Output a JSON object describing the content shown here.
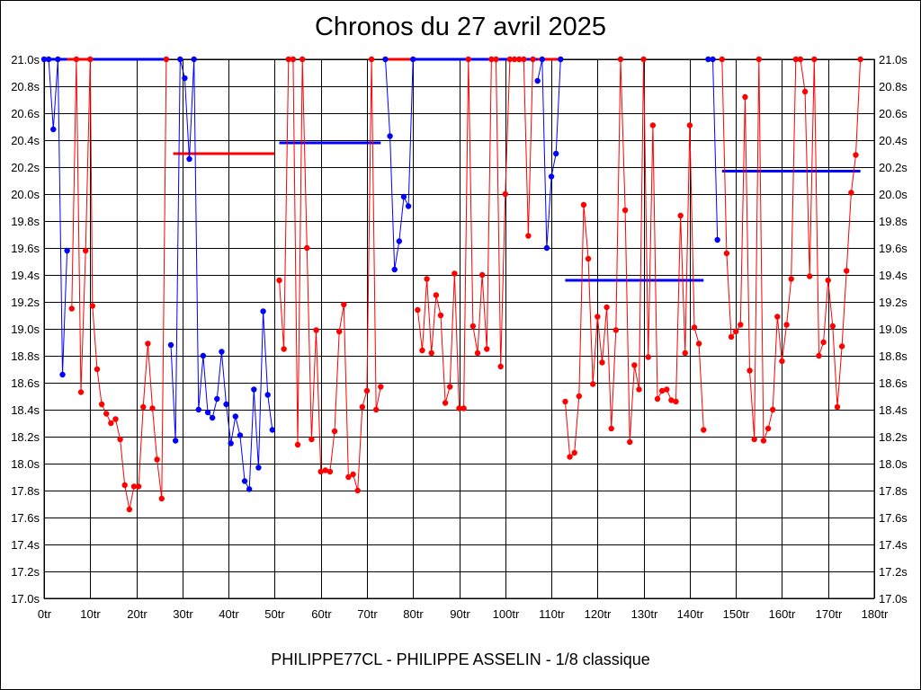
{
  "chart_data": {
    "type": "line",
    "title": "Chronos du 27 avril 2025",
    "footer": "PHILIPPE77CL - PHILIPPE ASSELIN - 1/8 classique",
    "colors": {
      "series_a": "#0000ff",
      "series_b": "#ff0000",
      "grid": "#000000"
    },
    "xlim": [
      0,
      180
    ],
    "ylim": [
      17.0,
      21.0
    ],
    "x_ticks": [
      {
        "v": 0,
        "label": "0tr"
      },
      {
        "v": 10,
        "label": "10tr"
      },
      {
        "v": 20,
        "label": "20tr"
      },
      {
        "v": 30,
        "label": "30tr"
      },
      {
        "v": 40,
        "label": "40tr"
      },
      {
        "v": 50,
        "label": "50tr"
      },
      {
        "v": 60,
        "label": "60tr"
      },
      {
        "v": 70,
        "label": "70tr"
      },
      {
        "v": 80,
        "label": "80tr"
      },
      {
        "v": 90,
        "label": "90tr"
      },
      {
        "v": 100,
        "label": "100tr"
      },
      {
        "v": 110,
        "label": "110tr"
      },
      {
        "v": 120,
        "label": "120tr"
      },
      {
        "v": 130,
        "label": "130tr"
      },
      {
        "v": 140,
        "label": "140tr"
      },
      {
        "v": 150,
        "label": "150tr"
      },
      {
        "v": 160,
        "label": "160tr"
      },
      {
        "v": 170,
        "label": "170tr"
      },
      {
        "v": 180,
        "label": "180tr"
      }
    ],
    "y_ticks": [
      {
        "v": 17.0,
        "label": "17.0s"
      },
      {
        "v": 17.2,
        "label": "17.2s"
      },
      {
        "v": 17.4,
        "label": "17.4s"
      },
      {
        "v": 17.6,
        "label": "17.6s"
      },
      {
        "v": 17.8,
        "label": "17.8s"
      },
      {
        "v": 18.0,
        "label": "18.0s"
      },
      {
        "v": 18.2,
        "label": "18.2s"
      },
      {
        "v": 18.4,
        "label": "18.4s"
      },
      {
        "v": 18.6,
        "label": "18.6s"
      },
      {
        "v": 18.8,
        "label": "18.8s"
      },
      {
        "v": 19.0,
        "label": "19.0s"
      },
      {
        "v": 19.2,
        "label": "19.2s"
      },
      {
        "v": 19.4,
        "label": "19.4s"
      },
      {
        "v": 19.6,
        "label": "19.6s"
      },
      {
        "v": 19.8,
        "label": "19.8s"
      },
      {
        "v": 20.0,
        "label": "20.0s"
      },
      {
        "v": 20.2,
        "label": "20.2s"
      },
      {
        "v": 20.4,
        "label": "20.4s"
      },
      {
        "v": 20.6,
        "label": "20.6s"
      },
      {
        "v": 20.8,
        "label": "20.8s"
      },
      {
        "v": 21.0,
        "label": "21.0s"
      }
    ],
    "grid": true,
    "series": [
      {
        "color": "#0000ff",
        "points": [
          [
            0,
            21.0
          ],
          [
            1,
            21.0
          ],
          [
            2,
            20.48
          ],
          [
            3,
            21.0
          ],
          [
            4,
            18.66
          ],
          [
            5,
            19.58
          ]
        ]
      },
      {
        "color": "#ff0000",
        "points": [
          [
            6,
            19.15
          ],
          [
            7,
            21.0
          ],
          [
            8,
            18.53
          ],
          [
            9,
            19.58
          ],
          [
            10,
            21.0
          ],
          [
            10.5,
            19.17
          ],
          [
            11.5,
            18.7
          ],
          [
            12.5,
            18.44
          ],
          [
            13.5,
            18.37
          ],
          [
            14.5,
            18.3
          ],
          [
            15.5,
            18.33
          ],
          [
            16.5,
            18.18
          ],
          [
            17.5,
            17.84
          ],
          [
            18.5,
            17.66
          ],
          [
            19.5,
            17.83
          ],
          [
            20.5,
            17.83
          ],
          [
            21.5,
            18.42
          ],
          [
            22.5,
            18.89
          ],
          [
            23.5,
            18.41
          ],
          [
            24.5,
            18.03
          ],
          [
            25.5,
            17.74
          ],
          [
            26.5,
            21.0
          ]
        ]
      },
      {
        "color": "#0000ff",
        "points": [
          [
            27.5,
            18.88
          ],
          [
            28.5,
            18.17
          ],
          [
            29.5,
            21.0
          ],
          [
            30.5,
            20.86
          ],
          [
            31.5,
            20.26
          ],
          [
            32.5,
            21.0
          ],
          [
            33.5,
            18.4
          ],
          [
            34.5,
            18.8
          ],
          [
            35.5,
            18.38
          ],
          [
            36.5,
            18.34
          ],
          [
            37.5,
            18.48
          ],
          [
            38.5,
            18.83
          ],
          [
            39.5,
            18.44
          ],
          [
            40.5,
            18.15
          ],
          [
            41.5,
            18.35
          ],
          [
            42.5,
            18.21
          ],
          [
            43.5,
            17.87
          ],
          [
            44.5,
            17.81
          ],
          [
            45.5,
            18.55
          ],
          [
            46.5,
            17.97
          ],
          [
            47.5,
            19.13
          ],
          [
            48.5,
            18.51
          ],
          [
            49.5,
            18.25
          ]
        ]
      },
      {
        "color": "#ff0000",
        "points": [
          [
            51,
            19.36
          ],
          [
            52,
            18.85
          ],
          [
            53,
            21.0
          ],
          [
            54,
            21.0
          ],
          [
            55,
            18.14
          ],
          [
            56,
            21.0
          ],
          [
            57,
            19.6
          ],
          [
            58,
            18.18
          ],
          [
            59,
            18.99
          ],
          [
            60,
            17.94
          ],
          [
            61,
            17.95
          ],
          [
            62,
            17.94
          ],
          [
            63,
            18.24
          ],
          [
            64,
            18.98
          ],
          [
            65,
            19.18
          ],
          [
            66,
            17.9
          ],
          [
            67,
            17.92
          ],
          [
            68,
            17.8
          ],
          [
            69,
            18.42
          ],
          [
            70,
            18.54
          ],
          [
            71,
            21.0
          ],
          [
            72,
            18.4
          ],
          [
            73,
            18.57
          ]
        ]
      },
      {
        "color": "#0000ff",
        "points": [
          [
            74,
            21.0
          ],
          [
            75,
            20.43
          ],
          [
            76,
            19.44
          ],
          [
            77,
            19.65
          ],
          [
            78,
            19.98
          ],
          [
            79,
            19.91
          ],
          [
            80,
            21.0
          ]
        ]
      },
      {
        "color": "#ff0000",
        "points": [
          [
            81,
            19.14
          ],
          [
            82,
            18.84
          ],
          [
            83,
            19.37
          ],
          [
            84,
            18.82
          ],
          [
            85,
            19.25
          ],
          [
            86,
            19.1
          ],
          [
            87,
            18.45
          ],
          [
            88,
            18.57
          ],
          [
            89,
            19.41
          ],
          [
            90,
            18.41
          ],
          [
            91,
            18.41
          ],
          [
            92,
            21.0
          ],
          [
            93,
            19.02
          ],
          [
            94,
            18.82
          ],
          [
            95,
            19.4
          ],
          [
            96,
            18.85
          ],
          [
            97,
            21.0
          ],
          [
            98,
            21.0
          ],
          [
            99,
            18.72
          ],
          [
            100,
            20.0
          ],
          [
            101,
            21.0
          ],
          [
            102,
            21.0
          ],
          [
            103,
            21.0
          ],
          [
            104,
            21.0
          ],
          [
            105,
            19.69
          ],
          [
            106,
            21.0
          ]
        ]
      },
      {
        "color": "#0000ff",
        "points": [
          [
            107,
            20.84
          ],
          [
            108,
            21.0
          ],
          [
            109,
            19.6
          ],
          [
            110,
            20.13
          ],
          [
            111,
            20.3
          ],
          [
            112,
            21.0
          ]
        ]
      },
      {
        "color": "#ff0000",
        "points": [
          [
            113,
            18.46
          ],
          [
            114,
            18.05
          ],
          [
            115,
            18.08
          ],
          [
            116,
            18.5
          ],
          [
            117,
            19.92
          ],
          [
            118,
            19.52
          ],
          [
            119,
            18.59
          ],
          [
            120,
            19.09
          ],
          [
            121,
            18.75
          ],
          [
            122,
            19.16
          ],
          [
            123,
            18.26
          ],
          [
            124,
            18.99
          ],
          [
            125,
            21.0
          ],
          [
            126,
            19.88
          ],
          [
            127,
            18.16
          ],
          [
            128,
            18.73
          ],
          [
            129,
            18.55
          ],
          [
            130,
            21.0
          ],
          [
            131,
            18.79
          ],
          [
            132,
            20.51
          ],
          [
            133,
            18.48
          ],
          [
            134,
            18.54
          ],
          [
            135,
            18.55
          ],
          [
            136,
            18.47
          ],
          [
            137,
            18.46
          ],
          [
            138,
            19.84
          ],
          [
            139,
            18.82
          ],
          [
            140,
            20.51
          ],
          [
            141,
            19.01
          ],
          [
            142,
            18.89
          ],
          [
            143,
            18.25
          ]
        ]
      },
      {
        "color": "#0000ff",
        "points": [
          [
            144,
            21.0
          ],
          [
            145,
            21.0
          ],
          [
            146,
            19.66
          ]
        ]
      },
      {
        "color": "#ff0000",
        "points": [
          [
            147,
            21.0
          ],
          [
            148,
            19.56
          ],
          [
            149,
            18.94
          ],
          [
            150,
            18.98
          ],
          [
            151,
            19.03
          ],
          [
            152,
            20.72
          ],
          [
            153,
            18.69
          ],
          [
            154,
            18.18
          ],
          [
            155,
            21.0
          ],
          [
            156,
            18.17
          ],
          [
            157,
            18.26
          ],
          [
            158,
            18.4
          ],
          [
            159,
            19.09
          ],
          [
            160,
            18.76
          ],
          [
            161,
            19.03
          ],
          [
            162,
            19.37
          ],
          [
            163,
            21.0
          ],
          [
            164,
            21.0
          ],
          [
            165,
            20.76
          ],
          [
            166,
            19.39
          ],
          [
            167,
            21.0
          ],
          [
            168,
            18.8
          ],
          [
            169,
            18.9
          ],
          [
            170,
            19.36
          ],
          [
            171,
            19.02
          ],
          [
            172,
            18.42
          ],
          [
            173,
            18.87
          ],
          [
            174,
            19.43
          ],
          [
            175,
            20.01
          ],
          [
            176,
            20.29
          ],
          [
            177,
            21.0
          ]
        ]
      }
    ],
    "top_segments": [
      {
        "color": "#0000ff",
        "x": [
          0,
          5
        ]
      },
      {
        "color": "#ff0000",
        "x": [
          5,
          10
        ]
      },
      {
        "color": "#0000ff",
        "x": [
          10,
          27
        ]
      },
      {
        "color": "#ff0000",
        "x": [
          74,
          80
        ]
      },
      {
        "color": "#0000ff",
        "x": [
          80,
          107
        ]
      },
      {
        "color": "#ff0000",
        "x": [
          107,
          112
        ]
      }
    ],
    "mean_lines": [
      {
        "color": "#ff0000",
        "y": 20.3,
        "x": [
          28,
          50
        ]
      },
      {
        "color": "#0000ff",
        "y": 20.38,
        "x": [
          51,
          73
        ]
      },
      {
        "color": "#0000ff",
        "y": 19.36,
        "x": [
          113,
          143
        ]
      },
      {
        "color": "#0000ff",
        "y": 20.17,
        "x": [
          147,
          177
        ]
      }
    ]
  }
}
